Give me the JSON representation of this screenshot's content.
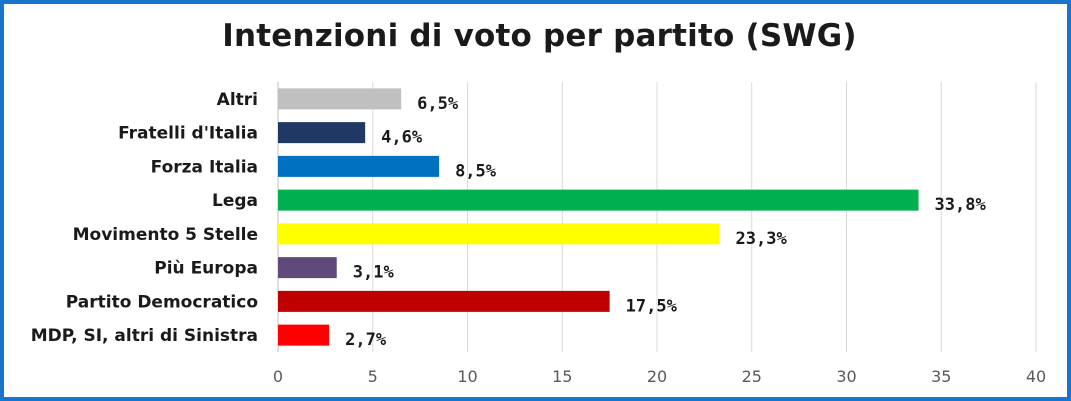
{
  "chart_data": {
    "type": "bar",
    "orientation": "horizontal",
    "title": "Intenzioni di voto per partito (SWG)",
    "categories": [
      "Altri",
      "Fratelli d'Italia",
      "Forza Italia",
      "Lega",
      "Movimento 5 Stelle",
      "Più Europa",
      "Partito Democratico",
      "MDP, SI, altri di Sinistra"
    ],
    "values": [
      6.5,
      4.6,
      8.5,
      33.8,
      23.3,
      3.1,
      17.5,
      2.7
    ],
    "value_labels": [
      "6,5%",
      "4,6%",
      "8,5%",
      "33,8%",
      "23,3%",
      "3,1%",
      "17,5%",
      "2,7%"
    ],
    "colors": [
      "#c0c0c0",
      "#1f3864",
      "#0070c0",
      "#00b050",
      "#ffff00",
      "#604a7b",
      "#c00000",
      "#ff0000"
    ],
    "xlim": [
      0,
      40
    ],
    "xticks": [
      "0",
      "5",
      "10",
      "15",
      "20",
      "25",
      "30",
      "35",
      "40"
    ],
    "grid": true,
    "legend": "none"
  }
}
